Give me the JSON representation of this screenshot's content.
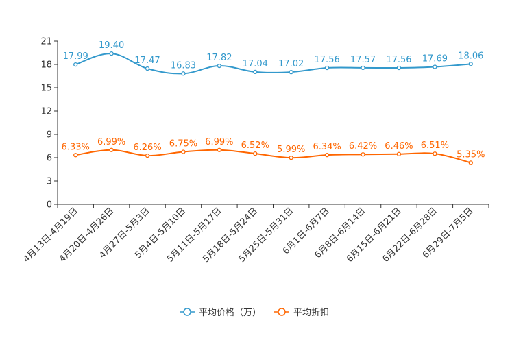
{
  "chart_data": {
    "type": "line",
    "categories": [
      "4月13日-4月19日",
      "4月20日-4月26日",
      "4月27日-5月3日",
      "5月4日-5月10日",
      "5月11日-5月17日",
      "5月18日-5月24日",
      "5月25日-5月31日",
      "6月1日-6月7日",
      "6月8日-6月14日",
      "6月15日-6月21日",
      "6月22日-6月28日",
      "6月29日-7月5日"
    ],
    "ylim": [
      0,
      21
    ],
    "yticks": [
      0,
      3,
      6,
      9,
      12,
      15,
      18,
      21
    ],
    "legend_position": "bottom",
    "series": [
      {
        "name": "平均价格（万）",
        "color": "#3399cc",
        "values": [
          17.99,
          19.4,
          17.47,
          16.83,
          17.82,
          17.04,
          17.02,
          17.56,
          17.57,
          17.56,
          17.69,
          18.06
        ],
        "labels": [
          "17.99",
          "19.40",
          "17.47",
          "16.83",
          "17.82",
          "17.04",
          "17.02",
          "17.56",
          "17.57",
          "17.56",
          "17.69",
          "18.06"
        ]
      },
      {
        "name": "平均折扣",
        "color": "#ff6600",
        "values": [
          6.33,
          6.99,
          6.26,
          6.75,
          6.99,
          6.52,
          5.99,
          6.34,
          6.42,
          6.46,
          6.51,
          5.35
        ],
        "labels": [
          "6.33%",
          "6.99%",
          "6.26%",
          "6.75%",
          "6.99%",
          "6.52%",
          "5.99%",
          "6.34%",
          "6.42%",
          "6.46%",
          "6.51%",
          "5.35%"
        ]
      }
    ]
  }
}
